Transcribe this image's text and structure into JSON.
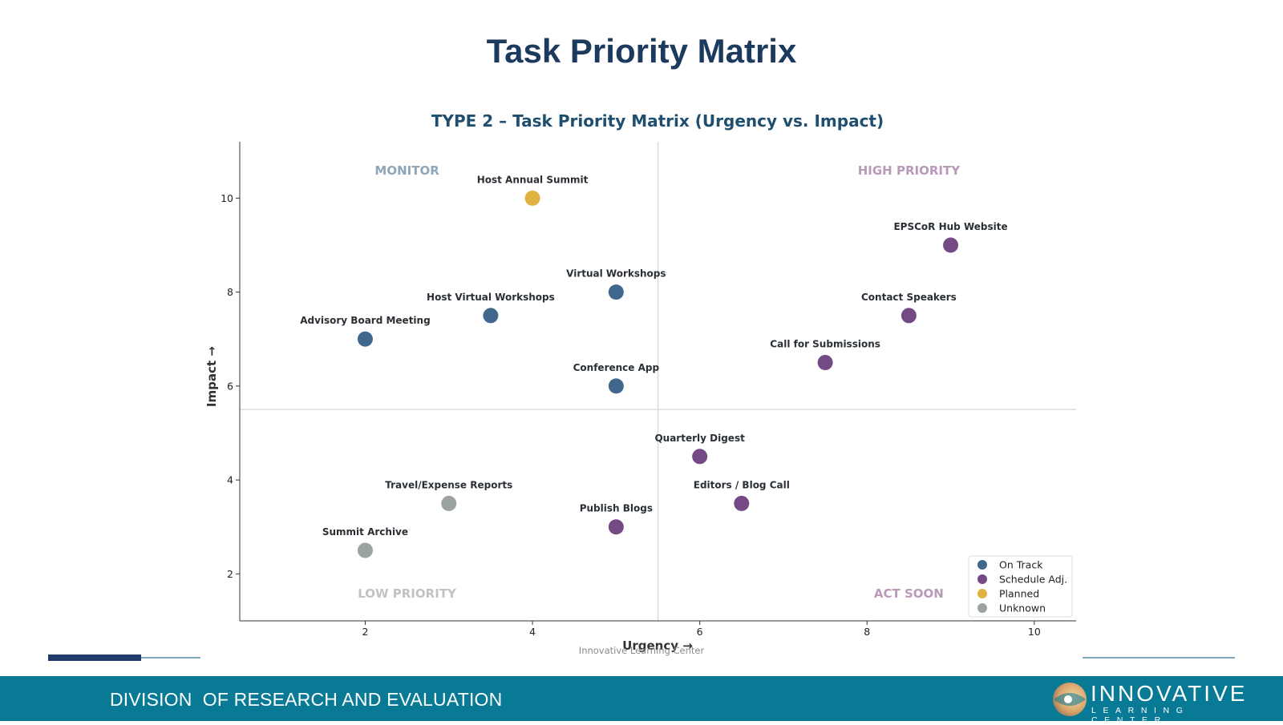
{
  "slide": {
    "title": "Task Priority Matrix",
    "footer_text": "DIVISION  OF RESEARCH AND EVALUATION",
    "logo": {
      "name": "INNOVATIVE",
      "sub": "LEARNING CENTER"
    },
    "colors": {
      "title": "#1c3a5e",
      "footer": "#087a96",
      "accent_bar": "#1f3a6b",
      "line": "#7fa6b8"
    }
  },
  "chart_data": {
    "type": "scatter",
    "title": "TYPE 2 – Task Priority Matrix (Urgency vs. Impact)",
    "xlabel": "Urgency  →",
    "ylabel": "Impact  →",
    "xlim": [
      0.5,
      10.5
    ],
    "ylim": [
      1,
      11.2
    ],
    "xticks": [
      2,
      4,
      6,
      8,
      10
    ],
    "yticks": [
      2,
      4,
      6,
      8,
      10
    ],
    "dividers": {
      "x": 5.5,
      "y": 5.5
    },
    "grid": false,
    "legend_position": "lower-right",
    "source_note": "Innovative Learning Center",
    "quadrants": [
      {
        "label": "MONITOR",
        "x": 2.5,
        "y": 10.6,
        "color": "#8fa6b8"
      },
      {
        "label": "HIGH PRIORITY",
        "x": 8.5,
        "y": 10.6,
        "color": "#b89ab8"
      },
      {
        "label": "LOW PRIORITY",
        "x": 2.5,
        "y": 1.6,
        "color": "#c2c2c2"
      },
      {
        "label": "ACT SOON",
        "x": 8.5,
        "y": 1.6,
        "color": "#b89ab8"
      }
    ],
    "series": [
      {
        "name": "On Track",
        "color": "#1f4e79"
      },
      {
        "name": "Schedule Adj.",
        "color": "#5b2a6e"
      },
      {
        "name": "Planned",
        "color": "#d9a520"
      },
      {
        "name": "Unknown",
        "color": "#8a9292"
      }
    ],
    "points": [
      {
        "label": "Host Annual Summit",
        "x": 4,
        "y": 10,
        "series": "Planned"
      },
      {
        "label": "EPSCoR Hub Website",
        "x": 9,
        "y": 9,
        "series": "Schedule Adj."
      },
      {
        "label": "Virtual Workshops",
        "x": 5,
        "y": 8,
        "series": "On Track"
      },
      {
        "label": "Host Virtual Workshops",
        "x": 3.5,
        "y": 7.5,
        "series": "On Track"
      },
      {
        "label": "Contact Speakers",
        "x": 8.5,
        "y": 7.5,
        "series": "Schedule Adj."
      },
      {
        "label": "Advisory Board Meeting",
        "x": 2,
        "y": 7,
        "series": "On Track"
      },
      {
        "label": "Call for Submissions",
        "x": 7.5,
        "y": 6.5,
        "series": "Schedule Adj."
      },
      {
        "label": "Conference App",
        "x": 5,
        "y": 6,
        "series": "On Track"
      },
      {
        "label": "Quarterly Digest",
        "x": 6,
        "y": 4.5,
        "series": "Schedule Adj."
      },
      {
        "label": "Travel/Expense Reports",
        "x": 3,
        "y": 3.5,
        "series": "Unknown"
      },
      {
        "label": "Editors / Blog Call",
        "x": 6.5,
        "y": 3.5,
        "series": "Schedule Adj."
      },
      {
        "label": "Publish Blogs",
        "x": 5,
        "y": 3,
        "series": "Schedule Adj."
      },
      {
        "label": "Summit Archive",
        "x": 2,
        "y": 2.5,
        "series": "Unknown"
      }
    ]
  }
}
